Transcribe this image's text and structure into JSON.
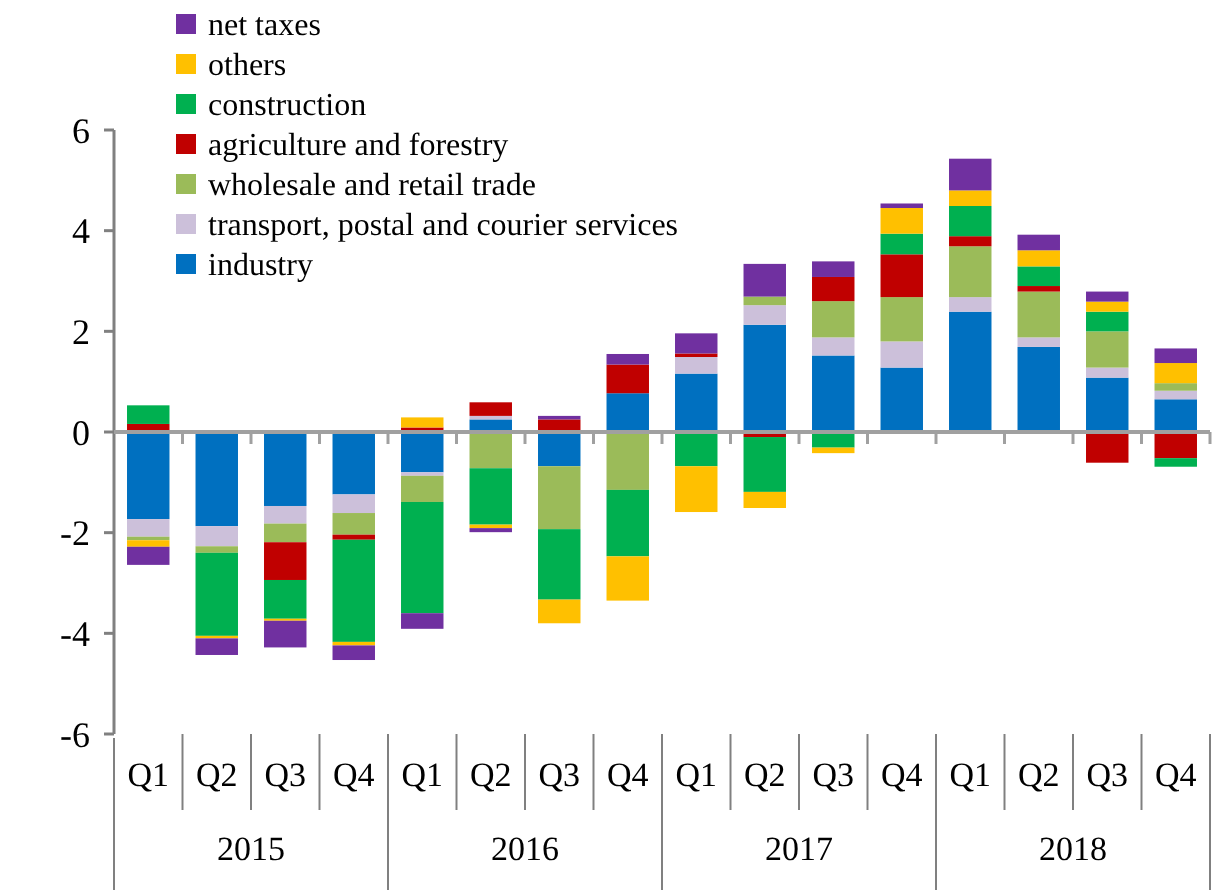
{
  "chart_data": {
    "type": "bar",
    "stacked": true,
    "categories": [
      "Q1",
      "Q2",
      "Q3",
      "Q4",
      "Q1",
      "Q2",
      "Q3",
      "Q4",
      "Q1",
      "Q2",
      "Q3",
      "Q4",
      "Q1",
      "Q2",
      "Q3",
      "Q4"
    ],
    "annotations": [
      "2015",
      "2016",
      "2017",
      "2018"
    ],
    "ylim": [
      -6,
      6
    ],
    "yticks": [
      -6,
      -4,
      -2,
      0,
      2,
      4,
      6
    ],
    "legend": "top left",
    "series": [
      {
        "name": "industry",
        "color": "#0070c0",
        "values": [
          -1.73,
          -1.87,
          -1.47,
          -1.24,
          -0.8,
          0.25,
          -0.68,
          0.77,
          1.16,
          2.13,
          1.52,
          1.28,
          2.39,
          1.69,
          1.08,
          0.65
        ]
      },
      {
        "name": "transport, postal and courier services",
        "color": "#ccc0da",
        "values": [
          -0.35,
          -0.4,
          -0.35,
          -0.37,
          -0.07,
          0.07,
          null,
          null,
          0.33,
          0.39,
          0.36,
          0.52,
          0.29,
          0.19,
          0.2,
          0.17
        ]
      },
      {
        "name": "wholesale and retail trade",
        "color": "#9bbb59",
        "values": [
          -0.07,
          -0.13,
          -0.37,
          -0.43,
          -0.52,
          -0.72,
          -1.25,
          -1.15,
          null,
          0.17,
          0.72,
          0.88,
          1.01,
          0.91,
          0.72,
          0.15
        ]
      },
      {
        "name": "agriculture and forestry",
        "color": "#c00000",
        "values": [
          0.16,
          null,
          -0.75,
          -0.1,
          0.09,
          0.27,
          0.25,
          0.57,
          0.07,
          -0.1,
          0.48,
          0.85,
          0.2,
          0.11,
          -0.61,
          -0.52
        ]
      },
      {
        "name": "construction",
        "color": "#00b050",
        "values": [
          0.37,
          -1.65,
          -0.77,
          -2.03,
          -2.21,
          -1.12,
          -1.4,
          -1.32,
          -0.68,
          -1.09,
          -0.31,
          0.41,
          0.6,
          0.39,
          0.39,
          -0.17
        ]
      },
      {
        "name": "others",
        "color": "#ffc000",
        "values": [
          -0.13,
          -0.05,
          -0.04,
          -0.07,
          0.2,
          -0.07,
          -0.47,
          -0.88,
          -0.91,
          -0.32,
          -0.11,
          0.51,
          0.31,
          0.32,
          0.2,
          0.4
        ]
      },
      {
        "name": "net taxes",
        "color": "#7030a0",
        "values": [
          -0.36,
          -0.33,
          -0.53,
          -0.29,
          -0.31,
          -0.08,
          0.07,
          0.21,
          0.4,
          0.65,
          0.31,
          0.09,
          0.63,
          0.31,
          0.2,
          0.29
        ]
      }
    ]
  }
}
